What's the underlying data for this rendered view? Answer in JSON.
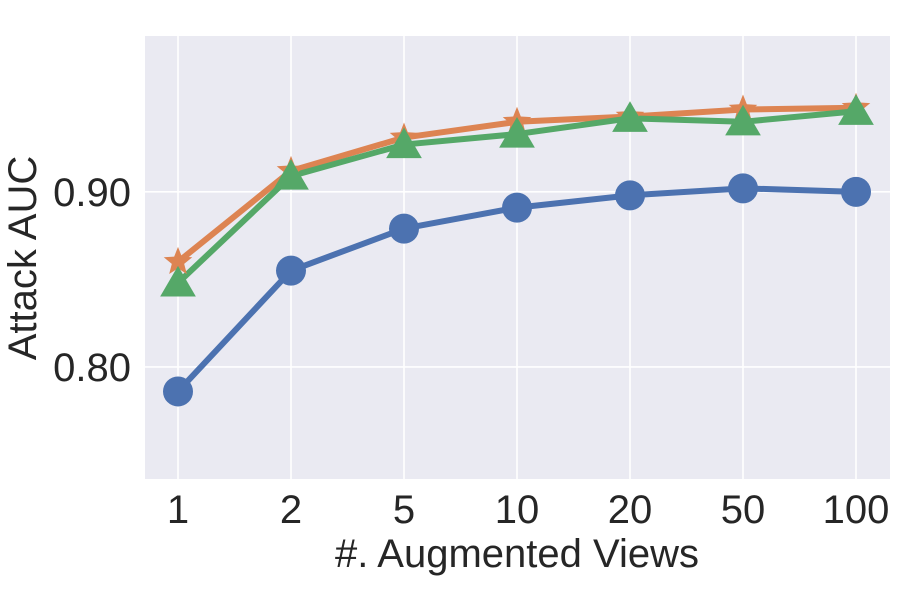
{
  "chart_data": {
    "type": "line",
    "xlabel": "#. Augmented Views",
    "ylabel": "Attack AUC",
    "categories": [
      "1",
      "2",
      "5",
      "10",
      "20",
      "50",
      "100"
    ],
    "yticks": [
      0.8,
      0.9
    ],
    "ytick_labels": [
      "0.80",
      "0.90"
    ],
    "ylim": [
      0.736,
      0.989
    ],
    "grid": true,
    "background": "#eaeaf2",
    "grid_color": "#ffffff",
    "series": [
      {
        "color": "#4c72b0",
        "marker": "circle",
        "values": [
          0.786,
          0.855,
          0.879,
          0.891,
          0.898,
          0.902,
          0.9
        ]
      },
      {
        "color": "#dd8452",
        "marker": "star",
        "values": [
          0.86,
          0.912,
          0.931,
          0.94,
          0.943,
          0.947,
          0.948
        ]
      },
      {
        "color": "#55a868",
        "marker": "triangle",
        "values": [
          0.848,
          0.909,
          0.927,
          0.933,
          0.942,
          0.94,
          0.946
        ]
      }
    ]
  }
}
